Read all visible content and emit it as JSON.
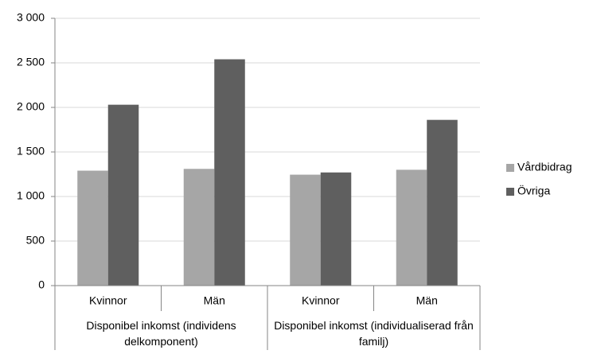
{
  "chart_data": {
    "type": "bar",
    "categories": [
      "Kvinnor",
      "Män",
      "Kvinnor",
      "Män"
    ],
    "category_groups": [
      "Disponibel inkomst (individens delkomponent)",
      "Disponibel inkomst (individualiserad från familj)"
    ],
    "series": [
      {
        "name": "Vårdbidrag",
        "color": "#a6a6a6",
        "values": [
          1290,
          1310,
          1245,
          1300
        ]
      },
      {
        "name": "Övriga",
        "color": "#5f5f5f",
        "values": [
          2030,
          2540,
          1270,
          1860
        ]
      }
    ],
    "ylim": [
      0,
      3000
    ],
    "yticks": [
      0,
      500,
      {
        "value": 1000,
        "label": "1 000"
      },
      {
        "value": 1500,
        "label": "1 500"
      },
      {
        "value": 2000,
        "label": "2 000"
      },
      {
        "value": 2500,
        "label": "2 500"
      },
      {
        "value": 3000,
        "label": "3 000"
      }
    ],
    "grid": true,
    "legend": "right"
  }
}
